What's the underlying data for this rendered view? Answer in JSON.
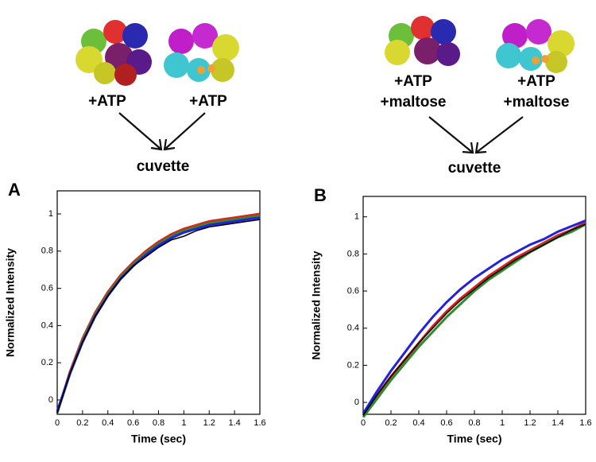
{
  "diagrams": [
    {
      "inputs": [
        [
          "+ATP"
        ],
        [
          "+ATP"
        ]
      ],
      "output": "cuvette"
    },
    {
      "inputs": [
        [
          "+ATP",
          "+maltose"
        ],
        [
          "+ATP",
          "+maltose"
        ]
      ],
      "output": "cuvette"
    }
  ],
  "chart_data": [
    {
      "type": "line",
      "panel": "A",
      "xlabel": "Time (sec)",
      "ylabel": "Normalized Intensity",
      "x": [
        0,
        0.1,
        0.2,
        0.3,
        0.4,
        0.5,
        0.6,
        0.7,
        0.8,
        0.9,
        1.0,
        1.1,
        1.2,
        1.3,
        1.4,
        1.5,
        1.6
      ],
      "xlim": [
        0,
        1.6
      ],
      "xticks": [
        0,
        0.2,
        0.4,
        0.6,
        0.8,
        1,
        1.2,
        1.4,
        1.6
      ],
      "ylim": [
        -0.077,
        1.124
      ],
      "yticks": [
        0,
        0.2,
        0.4,
        0.6,
        0.8,
        1
      ],
      "series": [
        {
          "color": "#e0201b",
          "values": [
            -0.07,
            0.15,
            0.33,
            0.47,
            0.58,
            0.67,
            0.74,
            0.8,
            0.85,
            0.89,
            0.92,
            0.94,
            0.96,
            0.97,
            0.98,
            0.99,
            1.0
          ]
        },
        {
          "color": "#2e8b2e",
          "values": [
            -0.07,
            0.14,
            0.32,
            0.46,
            0.57,
            0.66,
            0.73,
            0.79,
            0.84,
            0.88,
            0.91,
            0.93,
            0.95,
            0.96,
            0.97,
            0.98,
            0.99
          ]
        },
        {
          "color": "#2222dd",
          "values": [
            -0.06,
            0.14,
            0.31,
            0.45,
            0.56,
            0.65,
            0.72,
            0.78,
            0.83,
            0.87,
            0.9,
            0.92,
            0.94,
            0.95,
            0.96,
            0.97,
            0.98
          ]
        },
        {
          "color": "#000000",
          "values": [
            -0.07,
            0.14,
            0.31,
            0.45,
            0.56,
            0.65,
            0.72,
            0.77,
            0.82,
            0.86,
            0.88,
            0.91,
            0.93,
            0.94,
            0.95,
            0.96,
            0.97
          ]
        }
      ]
    },
    {
      "type": "line",
      "panel": "B",
      "xlabel": "Time (sec)",
      "ylabel": "Normalized Intensity",
      "x": [
        0,
        0.1,
        0.2,
        0.3,
        0.4,
        0.5,
        0.6,
        0.7,
        0.8,
        0.9,
        1.0,
        1.1,
        1.2,
        1.3,
        1.4,
        1.5,
        1.6
      ],
      "xlim": [
        0,
        1.6
      ],
      "xticks": [
        0,
        0.2,
        0.4,
        0.6,
        0.8,
        1,
        1.2,
        1.4,
        1.6
      ],
      "ylim": [
        -0.064,
        1.11
      ],
      "yticks": [
        0,
        0.2,
        0.4,
        0.6,
        0.8,
        1
      ],
      "series": [
        {
          "color": "#e0201b",
          "values": [
            -0.07,
            0.04,
            0.14,
            0.23,
            0.32,
            0.41,
            0.49,
            0.56,
            0.62,
            0.68,
            0.73,
            0.78,
            0.82,
            0.86,
            0.9,
            0.93,
            0.97
          ]
        },
        {
          "color": "#2e8b2e",
          "values": [
            -0.08,
            0.02,
            0.12,
            0.21,
            0.3,
            0.38,
            0.46,
            0.53,
            0.6,
            0.66,
            0.71,
            0.76,
            0.81,
            0.85,
            0.89,
            0.92,
            0.96
          ]
        },
        {
          "color": "#2222dd",
          "values": [
            -0.06,
            0.06,
            0.17,
            0.27,
            0.37,
            0.46,
            0.54,
            0.61,
            0.67,
            0.72,
            0.77,
            0.81,
            0.85,
            0.88,
            0.92,
            0.95,
            0.98
          ]
        },
        {
          "color": "#000000",
          "values": [
            -0.07,
            0.04,
            0.14,
            0.23,
            0.32,
            0.4,
            0.48,
            0.55,
            0.61,
            0.67,
            0.72,
            0.77,
            0.81,
            0.85,
            0.89,
            0.93,
            0.96
          ]
        }
      ]
    }
  ]
}
